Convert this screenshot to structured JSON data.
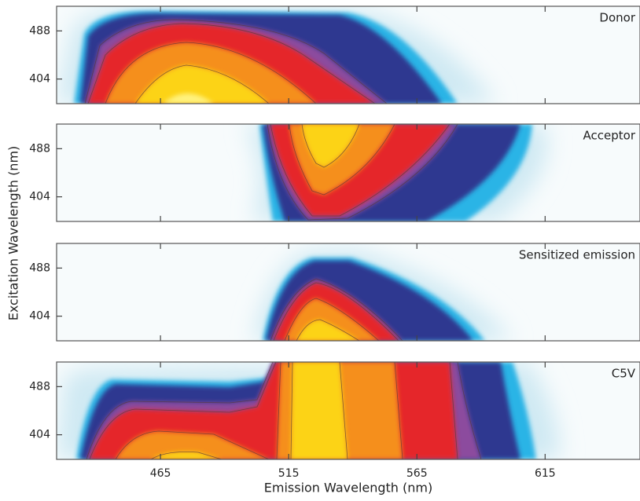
{
  "chart_data": [
    {
      "type": "heatmap",
      "title": "Donor",
      "xlim": [
        424.5,
        652
      ],
      "ylim": [
        361,
        531
      ],
      "yticks": [
        404,
        488
      ],
      "ylabel": "Excitation Wavelength (nm)"
    },
    {
      "type": "heatmap",
      "title": "Acceptor",
      "xlim": [
        424.5,
        652
      ],
      "ylim": [
        361,
        531
      ],
      "yticks": [
        404,
        488
      ]
    },
    {
      "type": "heatmap",
      "title": "Sensitized emission",
      "xlim": [
        424.5,
        652
      ],
      "ylim": [
        361,
        531
      ],
      "yticks": [
        404,
        488
      ]
    },
    {
      "type": "heatmap",
      "title": "C5V",
      "xlim": [
        424.5,
        652
      ],
      "ylim": [
        361,
        531
      ],
      "yticks": [
        404,
        488
      ],
      "xticks": [
        465,
        515,
        565,
        615
      ],
      "xlabel": "Emission Wavelength (nm)"
    }
  ]
}
